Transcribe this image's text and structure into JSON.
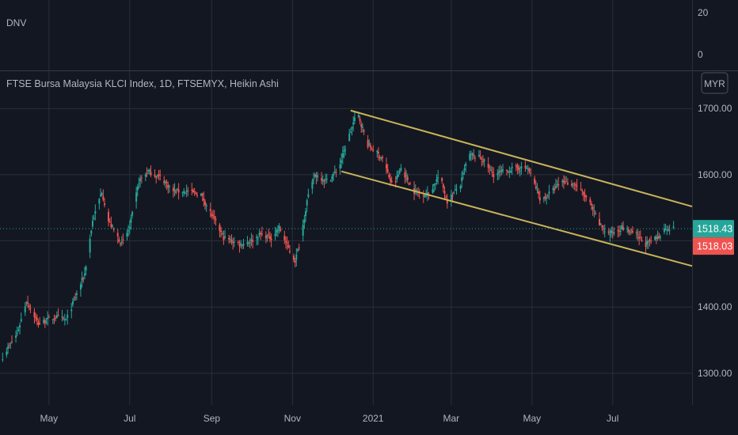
{
  "indicator_pane": {
    "label": "DNV",
    "ticks": [
      "20",
      "0"
    ],
    "tick_values": [
      20,
      0
    ]
  },
  "main_pane": {
    "title": "FTSE Bursa Malaysia KLCI Index, 1D, FTSEMYX, Heikin Ashi",
    "currency_badge": "MYR",
    "price_badges": [
      {
        "label": "1518.43",
        "value": 1518.43,
        "color": "#26a69a"
      },
      {
        "label": "1518.03",
        "value": 1518.03,
        "color": "#ef5350"
      }
    ]
  },
  "chart_data": {
    "type": "candlestick",
    "style": "Heikin Ashi",
    "interval": "1D",
    "symbol": "FTSEMYX",
    "colors": {
      "up": "#26a69a",
      "down": "#ef5350",
      "channel": "#c9b458",
      "background": "#131722",
      "grid": "#2a2e39"
    },
    "y_axis": {
      "ticks": [
        1300,
        1400,
        1500,
        1600,
        1700
      ],
      "tick_labels": [
        "1300.00",
        "1400.00",
        "",
        "1600.00",
        "1700.00"
      ],
      "ylim": [
        1252,
        1723
      ]
    },
    "x_axis": {
      "tick_labels": [
        "May",
        "Jul",
        "Sep",
        "Nov",
        "2021",
        "Mar",
        "May",
        "Jul"
      ],
      "tick_dates": [
        "2020-05-01",
        "2020-07-01",
        "2020-09-01",
        "2020-11-01",
        "2021-01-01",
        "2021-03-01",
        "2021-05-01",
        "2021-07-01"
      ],
      "xlim": [
        "2020-03-25",
        "2021-08-30"
      ]
    },
    "price_path": [
      [
        "2020-03-27",
        1325
      ],
      [
        "2020-04-07",
        1360
      ],
      [
        "2020-04-14",
        1410
      ],
      [
        "2020-04-23",
        1375
      ],
      [
        "2020-05-06",
        1385
      ],
      [
        "2020-05-14",
        1380
      ],
      [
        "2020-05-28",
        1450
      ],
      [
        "2020-06-03",
        1530
      ],
      [
        "2020-06-10",
        1575
      ],
      [
        "2020-06-15",
        1530
      ],
      [
        "2020-06-25",
        1495
      ],
      [
        "2020-07-01",
        1520
      ],
      [
        "2020-07-08",
        1590
      ],
      [
        "2020-07-15",
        1605
      ],
      [
        "2020-07-25",
        1595
      ],
      [
        "2020-08-03",
        1575
      ],
      [
        "2020-08-14",
        1575
      ],
      [
        "2020-08-24",
        1570
      ],
      [
        "2020-09-02",
        1535
      ],
      [
        "2020-09-10",
        1505
      ],
      [
        "2020-09-22",
        1495
      ],
      [
        "2020-10-01",
        1500
      ],
      [
        "2020-10-08",
        1510
      ],
      [
        "2020-10-16",
        1505
      ],
      [
        "2020-10-22",
        1520
      ],
      [
        "2020-10-31",
        1480
      ],
      [
        "2020-11-03",
        1470
      ],
      [
        "2020-11-07",
        1500
      ],
      [
        "2020-11-12",
        1560
      ],
      [
        "2020-11-18",
        1600
      ],
      [
        "2020-11-28",
        1590
      ],
      [
        "2020-12-06",
        1610
      ],
      [
        "2020-12-14",
        1660
      ],
      [
        "2020-12-20",
        1695
      ],
      [
        "2020-12-28",
        1645
      ],
      [
        "2021-01-08",
        1625
      ],
      [
        "2021-01-16",
        1580
      ],
      [
        "2021-01-22",
        1610
      ],
      [
        "2021-02-01",
        1575
      ],
      [
        "2021-02-12",
        1570
      ],
      [
        "2021-02-20",
        1600
      ],
      [
        "2021-02-26",
        1560
      ],
      [
        "2021-03-08",
        1585
      ],
      [
        "2021-03-14",
        1630
      ],
      [
        "2021-03-24",
        1625
      ],
      [
        "2021-04-02",
        1600
      ],
      [
        "2021-04-10",
        1605
      ],
      [
        "2021-04-18",
        1610
      ],
      [
        "2021-04-28",
        1610
      ],
      [
        "2021-05-08",
        1560
      ],
      [
        "2021-05-16",
        1575
      ],
      [
        "2021-05-24",
        1590
      ],
      [
        "2021-06-03",
        1585
      ],
      [
        "2021-06-13",
        1560
      ],
      [
        "2021-06-21",
        1525
      ],
      [
        "2021-06-28",
        1510
      ],
      [
        "2021-07-08",
        1520
      ],
      [
        "2021-07-18",
        1510
      ],
      [
        "2021-07-26",
        1495
      ],
      [
        "2021-08-04",
        1505
      ],
      [
        "2021-08-10",
        1520
      ],
      [
        "2021-08-16",
        1518.4
      ]
    ],
    "last_price": 1518.43,
    "channel_lines": [
      {
        "start": [
          "2020-12-15",
          1697
        ],
        "end": [
          "2021-08-30",
          1552
        ]
      },
      {
        "start": [
          "2020-12-08",
          1605
        ],
        "end": [
          "2021-08-30",
          1462
        ]
      }
    ]
  }
}
